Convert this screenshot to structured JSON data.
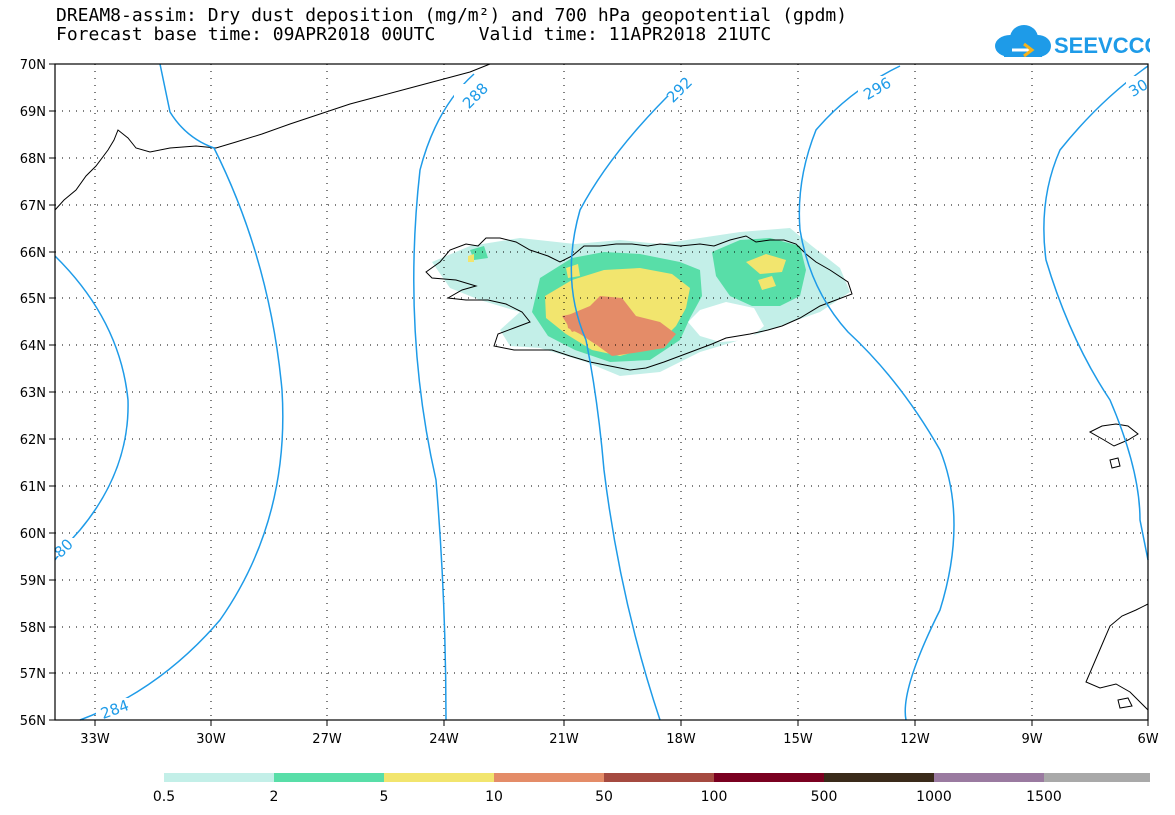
{
  "title": {
    "line1": "DREAM8-assim: Dry dust deposition (mg/m²) and 700 hPa geopotential (gpdm)",
    "line2": "Forecast base time: 09APR2018 00UTC    Valid time: 11APR2018 21UTC"
  },
  "logo": {
    "text": "SEEVCCC",
    "icon": "cloud-icon"
  },
  "map": {
    "lat_ticks": [
      "70N",
      "69N",
      "68N",
      "67N",
      "66N",
      "65N",
      "64N",
      "63N",
      "62N",
      "61N",
      "60N",
      "59N",
      "58N",
      "57N",
      "56N"
    ],
    "lon_ticks": [
      "33W",
      "30W",
      "27W",
      "24W",
      "21W",
      "18W",
      "15W",
      "12W",
      "9W",
      "6W"
    ],
    "contour_labels": {
      "c280": "80",
      "c284": "284",
      "c288": "288",
      "c292": "292",
      "c296": "296",
      "c300": "30"
    },
    "contour_color": "#1e9be8",
    "grid": true
  },
  "colorbar": {
    "colors": [
      "#c3efe8",
      "#58dea8",
      "#f2e56e",
      "#e48c68",
      "#a54a40",
      "#7a0020",
      "#3a2a1a",
      "#9a7aa0",
      "#a9a9a9"
    ],
    "labels": [
      "0.5",
      "2",
      "5",
      "10",
      "50",
      "100",
      "500",
      "1000",
      "1500"
    ]
  }
}
